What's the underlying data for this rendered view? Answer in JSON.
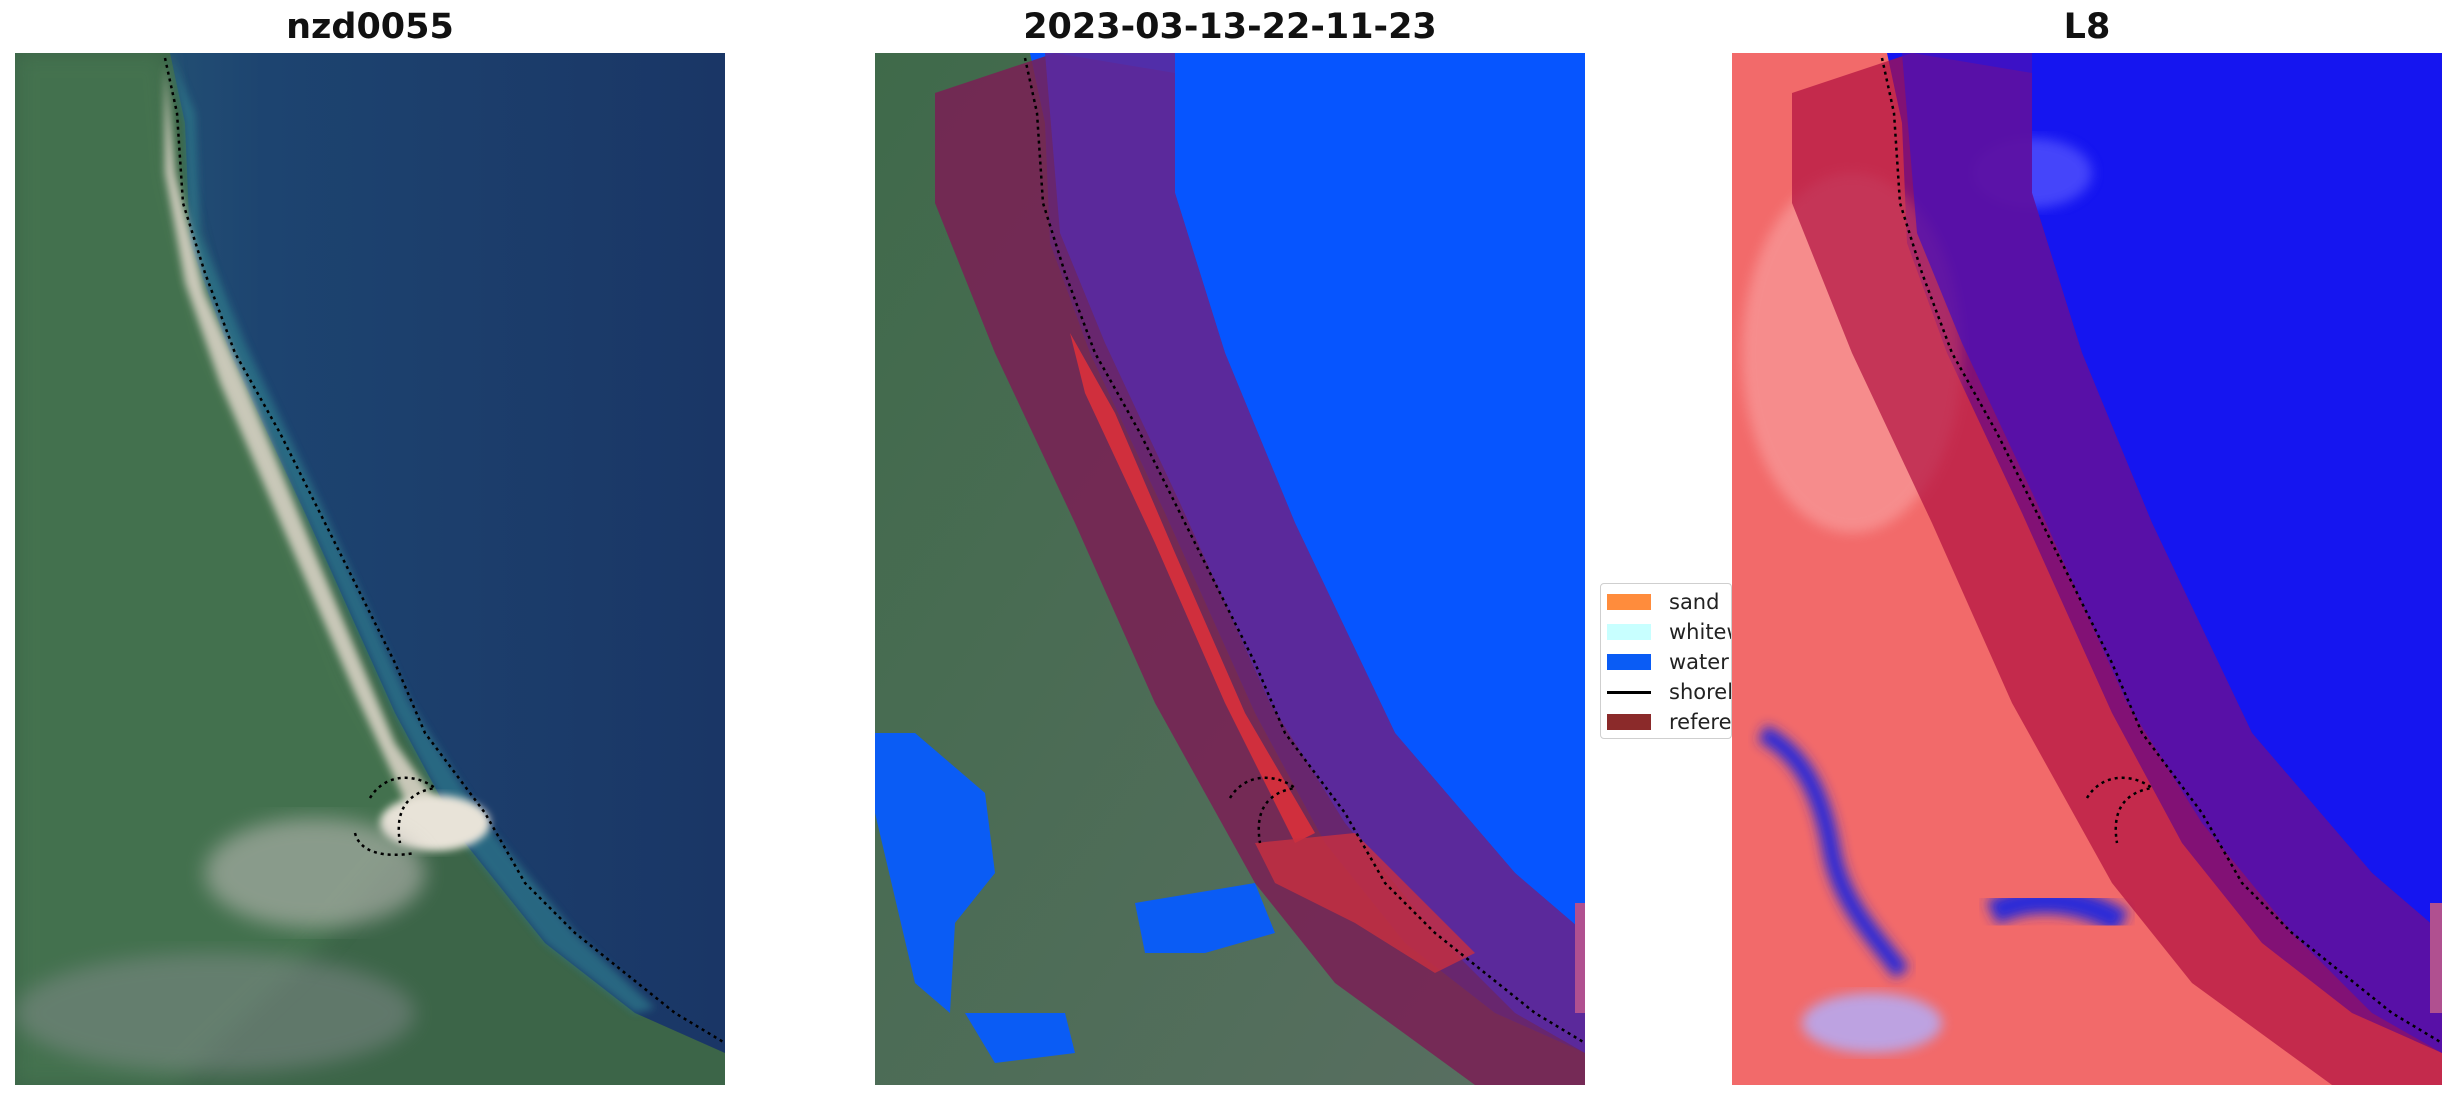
{
  "panels": [
    {
      "title": "nzd0055"
    },
    {
      "title": "2023-03-13-22-11-23"
    },
    {
      "title": "L8"
    }
  ],
  "legend": {
    "items": [
      {
        "label": "sand",
        "color": "#ff8c3c",
        "kind": "patch"
      },
      {
        "label": "whitew",
        "color": "#c8ffff",
        "kind": "patch"
      },
      {
        "label": "water",
        "color": "#0a5cf5",
        "kind": "patch"
      },
      {
        "label": "shorel",
        "color": "#000000",
        "kind": "line"
      },
      {
        "label": "referen",
        "color": "#8b2a2a",
        "kind": "patch"
      }
    ]
  },
  "colors": {
    "ocean": "#1b3a6b",
    "land": "#3f6a4a",
    "sand": "#cfc8b8",
    "water_class": "#0a5cf5",
    "reference_zone": "#7a1e55",
    "index_land": "#f46a6a",
    "index_water": "#1010f0"
  }
}
